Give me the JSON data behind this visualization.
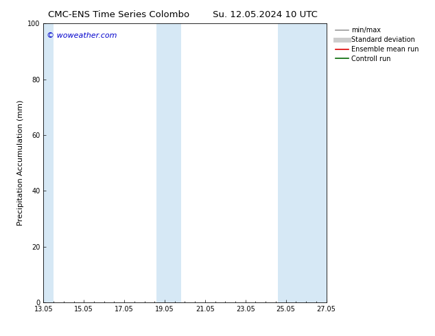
{
  "title_left": "CMC-ENS Time Series Colombo",
  "title_right": "Su. 12.05.2024 10 UTC",
  "ylabel": "Precipitation Accumulation (mm)",
  "watermark": "© woweather.com",
  "xlim_num": [
    0,
    14
  ],
  "ylim": [
    0,
    100
  ],
  "yticks": [
    0,
    20,
    40,
    60,
    80,
    100
  ],
  "xtick_positions": [
    0,
    2,
    4,
    6,
    8,
    10,
    12,
    14
  ],
  "xtick_labels": [
    "13.05",
    "15.05",
    "17.05",
    "19.05",
    "21.05",
    "23.05",
    "25.05",
    "27.05"
  ],
  "shaded_bands": [
    {
      "x_start": 0.0,
      "x_end": 0.5,
      "color": "#d6e8f5"
    },
    {
      "x_start": 5.6,
      "x_end": 6.8,
      "color": "#d6e8f5"
    },
    {
      "x_start": 11.6,
      "x_end": 14.0,
      "color": "#d6e8f5"
    }
  ],
  "legend_entries": [
    {
      "label": "min/max",
      "color": "#999999",
      "linewidth": 1.2
    },
    {
      "label": "Standard deviation",
      "color": "#cccccc",
      "linewidth": 5.0
    },
    {
      "label": "Ensemble mean run",
      "color": "#dd0000",
      "linewidth": 1.2
    },
    {
      "label": "Controll run",
      "color": "#006600",
      "linewidth": 1.2
    }
  ],
  "background_color": "#ffffff",
  "title_fontsize": 9.5,
  "tick_fontsize": 7,
  "label_fontsize": 8,
  "legend_fontsize": 7,
  "watermark_color": "#0000cc",
  "watermark_fontsize": 8
}
